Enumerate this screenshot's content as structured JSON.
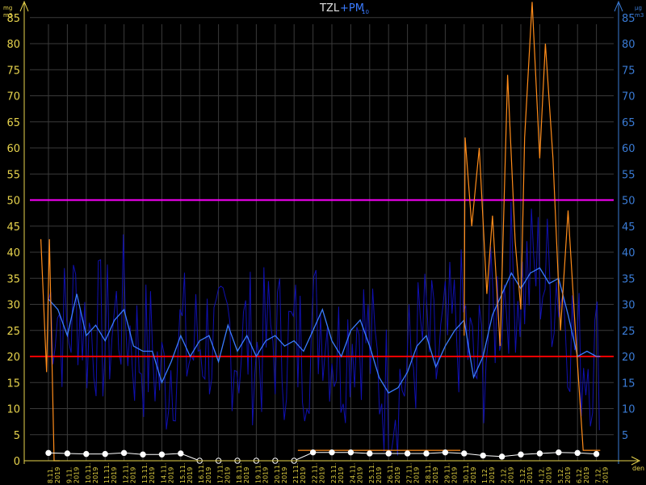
{
  "title": {
    "primary": "TZL",
    "secondary": "+PM",
    "secondary_sub": "10"
  },
  "units": {
    "left_top": "mg",
    "left_bottom": "m3",
    "right_top": "µg",
    "right_bottom": "m3",
    "x_axis": "den"
  },
  "colors": {
    "background": "#000000",
    "grid": "#3a3a3a",
    "left_axis": "#e8d44d",
    "right_axis": "#3a7bd5",
    "tzl_series": "#ff8c1a",
    "pm10_raw": "#1010b0",
    "pm10_avg": "#3a7bff",
    "limit_50": "#ff00ff",
    "limit_20": "#ff0000",
    "daily_markers": "#ffffff"
  },
  "chart_data": {
    "type": "line",
    "ylim": [
      0,
      90
    ],
    "yticks_left": [
      "0",
      "5",
      "10",
      "15",
      "20",
      "25",
      "30",
      "35",
      "40",
      "45",
      "50",
      "55",
      "60",
      "65",
      "70",
      "75",
      "80",
      "85"
    ],
    "yticks_right": [
      "5",
      "10",
      "15",
      "20",
      "25",
      "30",
      "35",
      "40",
      "45",
      "50",
      "55",
      "60",
      "65",
      "70",
      "75",
      "80",
      "85"
    ],
    "categories": [
      "8.11.",
      "9.11.",
      "10.11.",
      "11.11.",
      "12.11.",
      "13.11.",
      "14.11.",
      "15.11.",
      "16.11.",
      "17.11.",
      "18.11.",
      "19.11.",
      "20.11.",
      "21.11.",
      "22.11.",
      "23.11.",
      "24.11.",
      "25.11.",
      "26.11.",
      "27.11.",
      "28.11.",
      "29.11.",
      "30.11.",
      "1.12.",
      "2.12.",
      "3.12.",
      "4.12.",
      "5.12.",
      "6.12.",
      "7.12."
    ],
    "year_label": "2019",
    "reference_lines": [
      {
        "value": 50,
        "color": "#ff00ff"
      },
      {
        "value": 20,
        "color": "#ff0000"
      }
    ],
    "series": [
      {
        "name": "TZL",
        "x": [
          0.0,
          0.3,
          0.45,
          0.7,
          1.0
        ],
        "values": [
          42.5,
          17.0,
          42.5,
          0,
          0
        ]
      },
      {
        "name": "PM10",
        "x": [
          0,
          0.5,
          1,
          1.5,
          2,
          2.5,
          3,
          3.5,
          4,
          4.5,
          5,
          5.5,
          6,
          6.5,
          7,
          7.5,
          8,
          8.5,
          9,
          9.5,
          10,
          10.5,
          11,
          11.5,
          12,
          12.5,
          13,
          13.5,
          14,
          14.5,
          15,
          15.5,
          16,
          16.5,
          17,
          17.5,
          18,
          18.5,
          19,
          19.5,
          20,
          20.5,
          21,
          21.5,
          22,
          22.5,
          23,
          23.5,
          24,
          24.5,
          25,
          25.5,
          26,
          26.5,
          27,
          27.5,
          28,
          28.5,
          29,
          29.2
        ],
        "values": [
          31,
          29,
          24,
          32,
          24,
          26,
          23,
          27,
          29,
          22,
          21,
          21,
          15,
          19,
          24,
          20,
          23,
          24,
          19,
          26,
          21,
          24,
          20,
          23,
          24,
          22,
          23,
          21,
          25,
          29,
          23,
          20,
          25,
          27,
          22,
          16,
          13,
          14,
          17,
          22,
          24,
          18,
          22,
          25,
          27,
          16,
          20,
          28,
          32,
          36,
          33,
          36,
          37,
          34,
          35,
          28,
          20,
          21,
          20,
          20
        ]
      }
    ],
    "daily_markers": [
      1.5,
      1.4,
      1.3,
      1.3,
      1.5,
      1.2,
      1.2,
      1.4,
      0,
      0,
      0,
      0,
      0,
      0,
      1.6,
      1.6,
      1.6,
      1.4,
      1.4,
      1.4,
      1.4,
      1.6,
      1.4,
      1.0,
      0.8,
      1.2,
      1.4,
      1.6,
      1.5,
      1.3
    ]
  }
}
